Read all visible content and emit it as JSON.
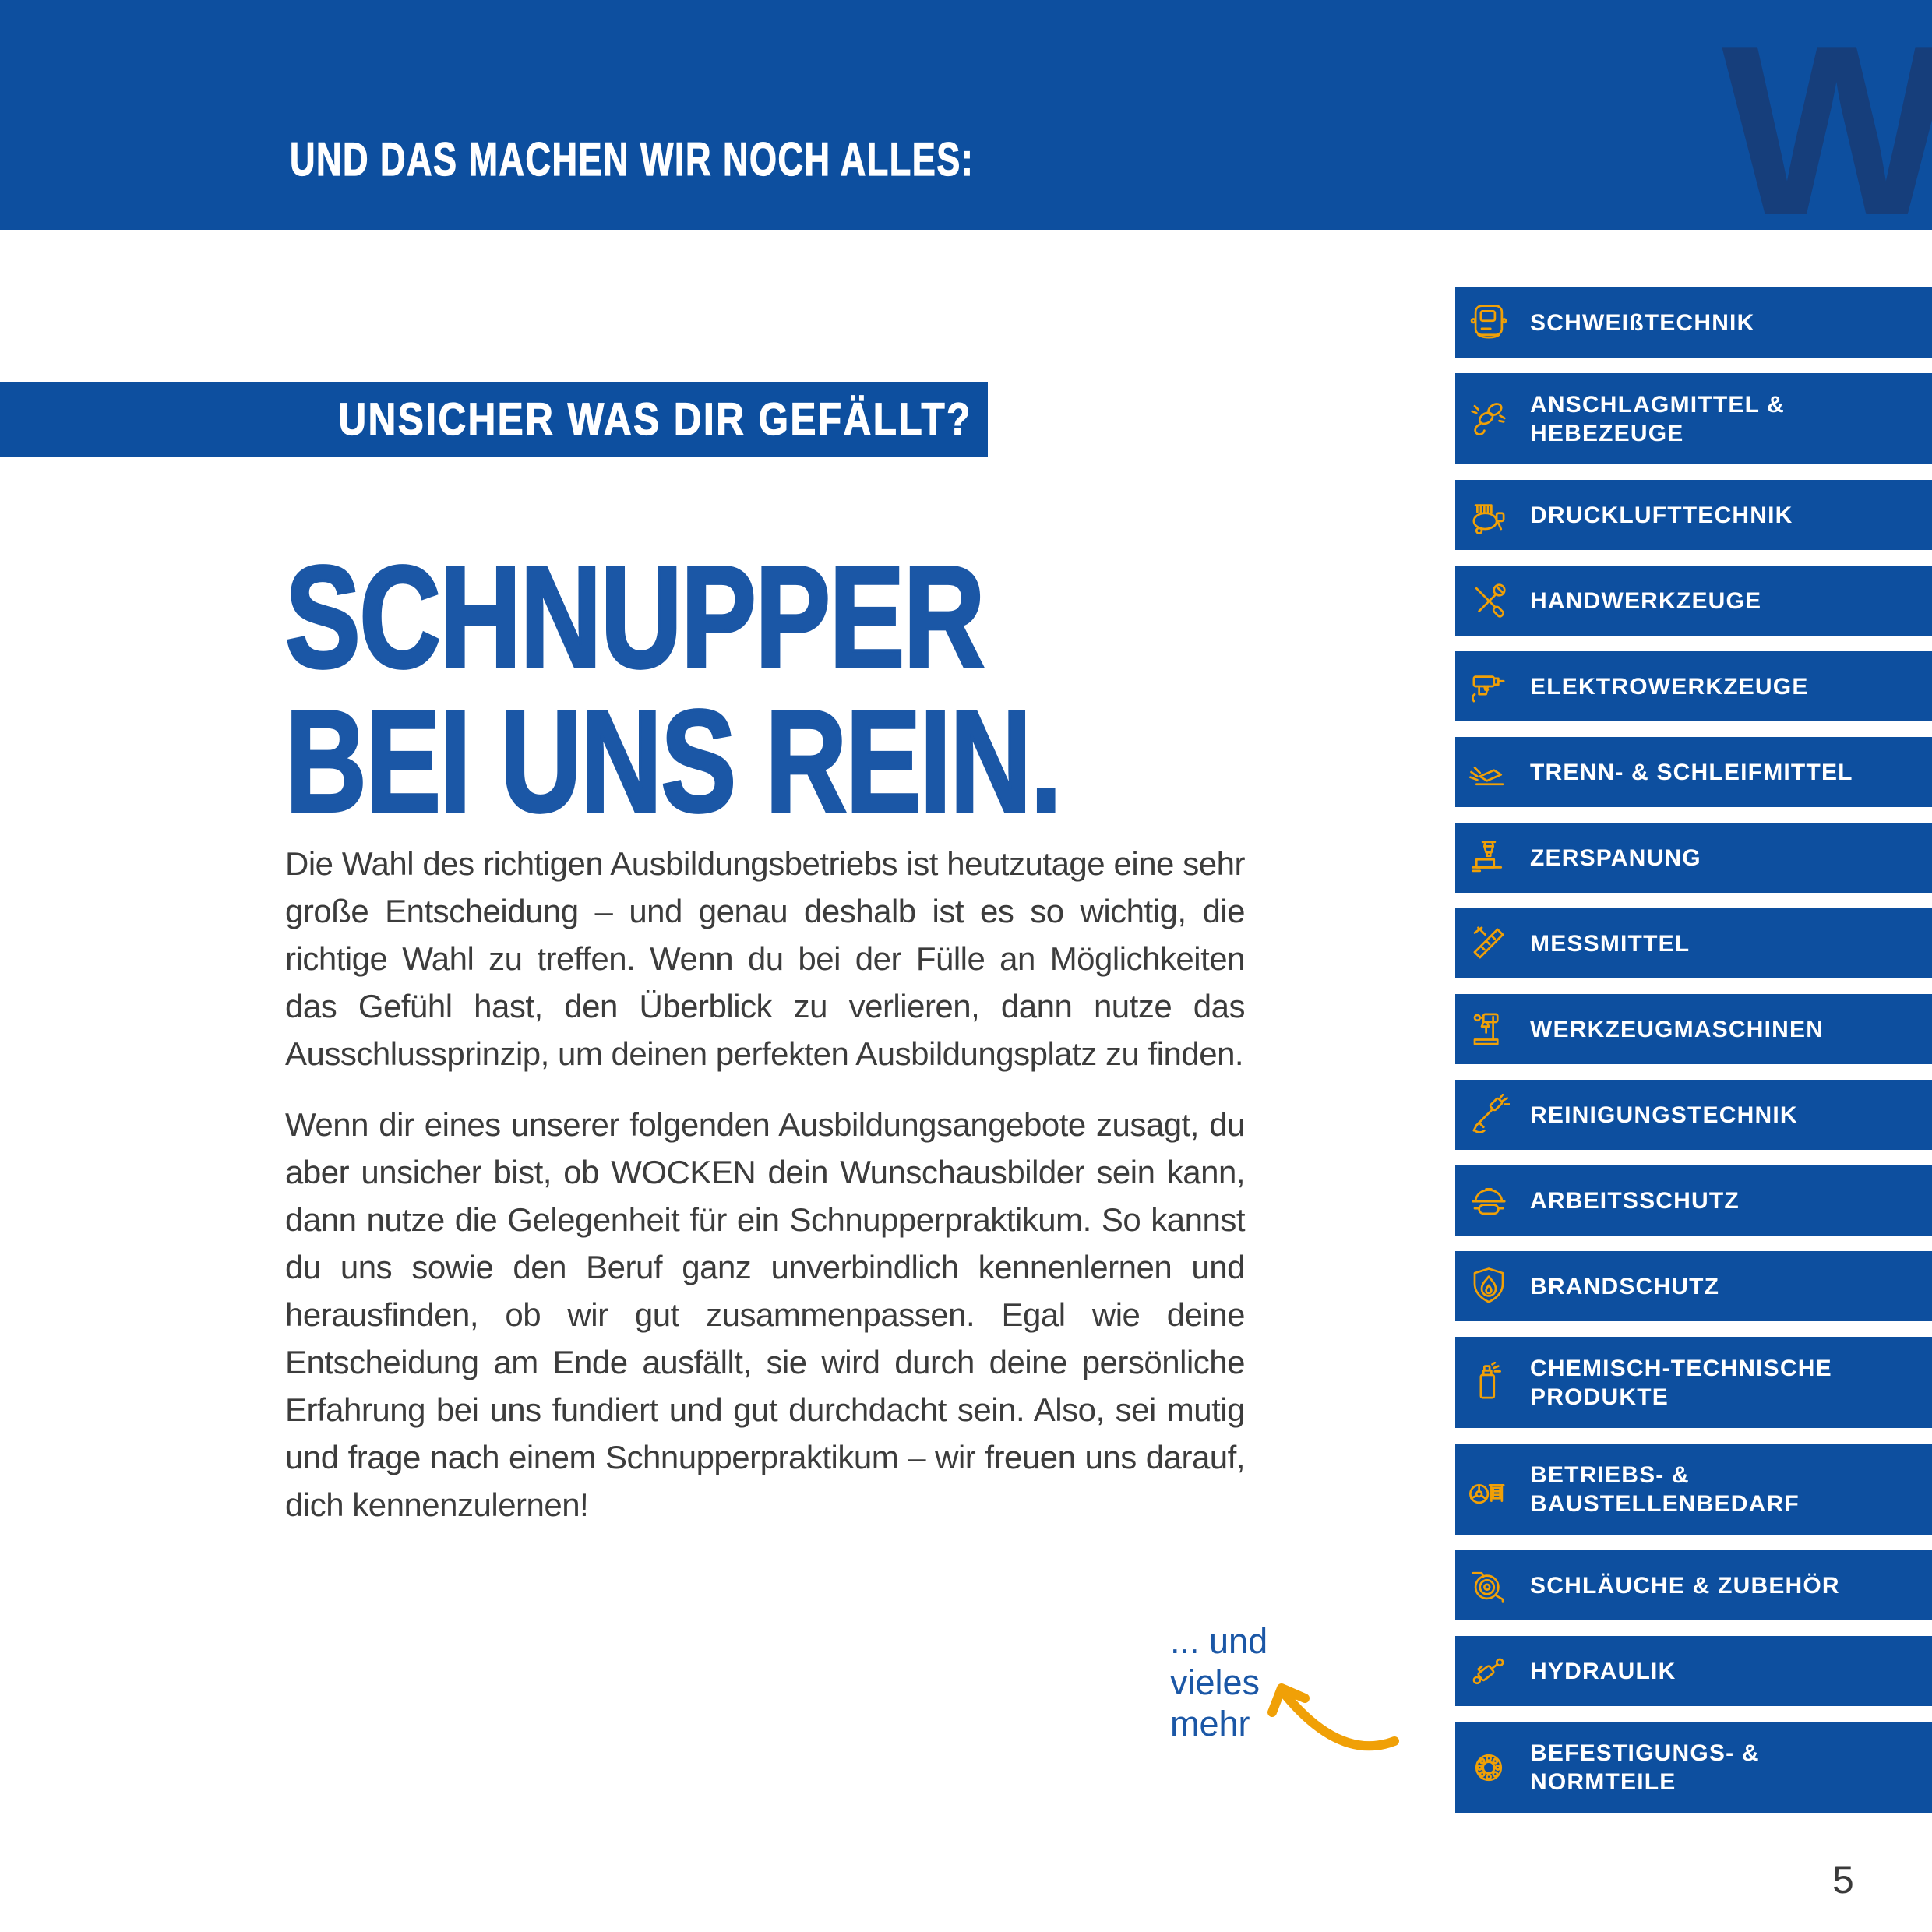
{
  "colors": {
    "primary_blue": "#0D4F9F",
    "heading_blue": "#1B57A6",
    "dark_blue": "#163E7B",
    "accent_orange": "#F0A007",
    "body_text": "#3C3C3C"
  },
  "header": {
    "title": "UND DAS MACHEN WIR NOCH ALLES:",
    "watermark_letter": "W"
  },
  "banner": {
    "label": "UNSICHER WAS DIR GEFÄLLT?"
  },
  "heading": {
    "line1": "SCHNUPPER",
    "line2": "BEI UNS REIN."
  },
  "body": {
    "paragraph1": "Die Wahl des richtigen Ausbildungsbetriebs ist heutzutage eine sehr große Entscheidung – und genau deshalb ist es so wichtig, die richtige Wahl zu treffen. Wenn du bei der Fülle an Möglichkeiten das Gefühl hast, den Überblick zu verlieren, dann nutze das Ausschlussprinzip, um deinen perfekten Ausbildungsplatz zu finden.",
    "paragraph2": "Wenn dir eines unserer folgenden Ausbildungsangebote zusagt, du aber unsicher bist, ob WOCKEN dein Wunschausbilder sein kann, dann nutze die Gelegenheit für ein Schnupperpraktikum. So kannst du uns sowie den Beruf ganz unverbindlich kennenlernen und herausfinden, ob wir gut zusammenpassen. Egal wie deine Entscheidung am Ende ausfällt, sie wird durch deine persönliche Erfahrung bei uns fundiert und gut durchdacht sein. Also, sei mutig und frage nach einem Schnupperpraktikum – wir freuen uns darauf, dich kennenzulernen!"
  },
  "more_note": {
    "lines": [
      "... und",
      "vieles",
      "mehr"
    ]
  },
  "footer": {
    "page_number": "5"
  },
  "sidebar": {
    "items": [
      {
        "label": "SCHWEIßTECHNIK",
        "icon": "welding-helmet",
        "two_line": false
      },
      {
        "label": "ANSCHLAGMITTEL & HEBEZEUGE",
        "icon": "chain-hook",
        "two_line": true
      },
      {
        "label": "DRUCKLUFTTECHNIK",
        "icon": "compressor",
        "two_line": false
      },
      {
        "label": "HANDWERKZEUGE",
        "icon": "hand-tools",
        "two_line": false
      },
      {
        "label": "ELEKTROWERKZEUGE",
        "icon": "power-drill",
        "two_line": false
      },
      {
        "label": "TRENN- & SCHLEIFMITTEL",
        "icon": "grinding-disc",
        "two_line": false
      },
      {
        "label": "ZERSPANUNG",
        "icon": "milling-machine",
        "two_line": false
      },
      {
        "label": "MESSMITTEL",
        "icon": "caliper-ruler",
        "two_line": false
      },
      {
        "label": "WERKZEUGMASCHINEN",
        "icon": "drill-press",
        "two_line": false
      },
      {
        "label": "REINIGUNGSTECHNIK",
        "icon": "pressure-washer",
        "two_line": false
      },
      {
        "label": "ARBEITSSCHUTZ",
        "icon": "hard-hat",
        "two_line": false
      },
      {
        "label": "BRANDSCHUTZ",
        "icon": "fire-shield",
        "two_line": false
      },
      {
        "label": "CHEMISCH-TECHNISCHE PRODUKTE",
        "icon": "spray-can",
        "two_line": true
      },
      {
        "label": "BETRIEBS- & BAUSTELLENBEDARF",
        "icon": "fan-cabinet",
        "two_line": true
      },
      {
        "label": "SCHLÄUCHE & ZUBEHÖR",
        "icon": "hose-reel",
        "two_line": false
      },
      {
        "label": "HYDRAULIK",
        "icon": "hydraulic-cylinder",
        "two_line": false
      },
      {
        "label": "BEFESTIGUNGS- & NORMTEILE",
        "icon": "ball-bearing",
        "two_line": true
      }
    ]
  }
}
